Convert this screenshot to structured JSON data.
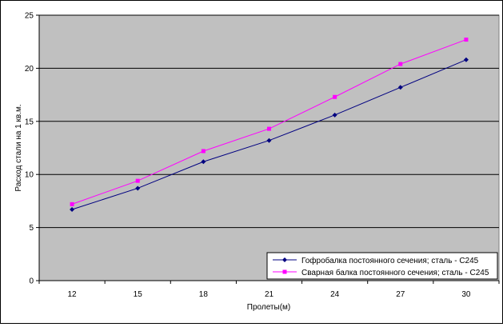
{
  "chart_data": {
    "type": "line",
    "title": "",
    "xlabel": "Пролеты(м)",
    "ylabel": "Расход стали на 1 кв.м.",
    "categories": [
      "12",
      "15",
      "18",
      "21",
      "24",
      "27",
      "30"
    ],
    "ylim": [
      0,
      25
    ],
    "yticks": [
      0,
      5,
      10,
      15,
      20,
      25
    ],
    "grid": true,
    "legend_position": "bottom-right",
    "plot_background": "#c0c0c0",
    "series": [
      {
        "name": "Гофробалка постоянного сечения; сталь - С245",
        "color": "#000080",
        "marker": "diamond",
        "values": [
          6.7,
          8.7,
          11.2,
          13.2,
          15.6,
          18.2,
          20.8
        ]
      },
      {
        "name": "Сварная балка постоянного сечения; сталь - С245",
        "color": "#ff00ff",
        "marker": "square",
        "values": [
          7.2,
          9.4,
          12.2,
          14.3,
          17.3,
          20.4,
          22.7
        ]
      }
    ]
  }
}
